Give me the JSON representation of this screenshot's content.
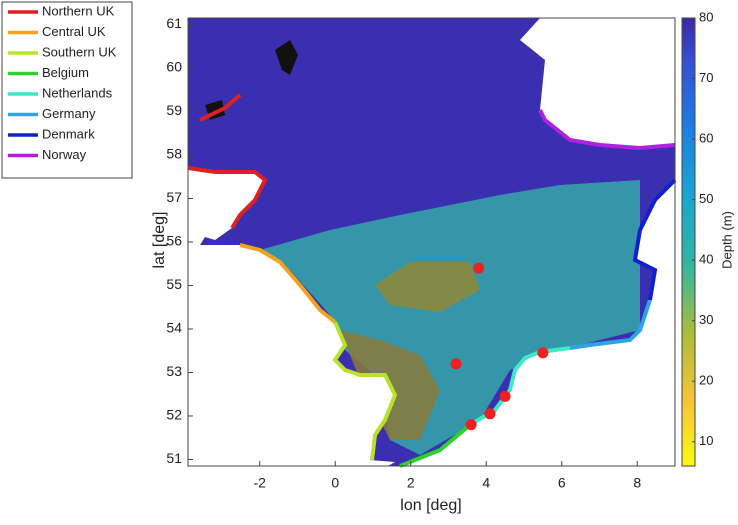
{
  "chart_data": {
    "type": "map",
    "xlabel": "lon [deg]",
    "ylabel": "lat [deg]",
    "xlim": [
      -3.9,
      9
    ],
    "ylim": [
      50.85,
      61.15
    ],
    "xticks": [
      -2,
      0,
      2,
      4,
      6,
      8
    ],
    "yticks": [
      51,
      52,
      53,
      54,
      55,
      56,
      57,
      58,
      59,
      60,
      61
    ],
    "series": [
      {
        "name": "Northern UK",
        "color": "#e02020"
      },
      {
        "name": "Central UK",
        "color": "#f2a21c"
      },
      {
        "name": "Southern UK",
        "color": "#b8e32a"
      },
      {
        "name": "Belgium",
        "color": "#2ed12e"
      },
      {
        "name": "Netherlands",
        "color": "#3fe8c8"
      },
      {
        "name": "Germany",
        "color": "#2aa6e6"
      },
      {
        "name": "Denmark",
        "color": "#1020d0"
      },
      {
        "name": "Norway",
        "color": "#b020e0"
      }
    ],
    "points": {
      "color": "#ee2020",
      "x": [
        3.8,
        3.2,
        5.5,
        4.5,
        4.1,
        3.6
      ],
      "y": [
        55.4,
        53.2,
        53.45,
        52.45,
        52.05,
        51.8
      ]
    },
    "colorbar": {
      "label": "Depth (m)",
      "lim": [
        6,
        80
      ],
      "ticks": [
        10,
        20,
        30,
        40,
        50,
        60,
        70,
        80
      ]
    }
  }
}
